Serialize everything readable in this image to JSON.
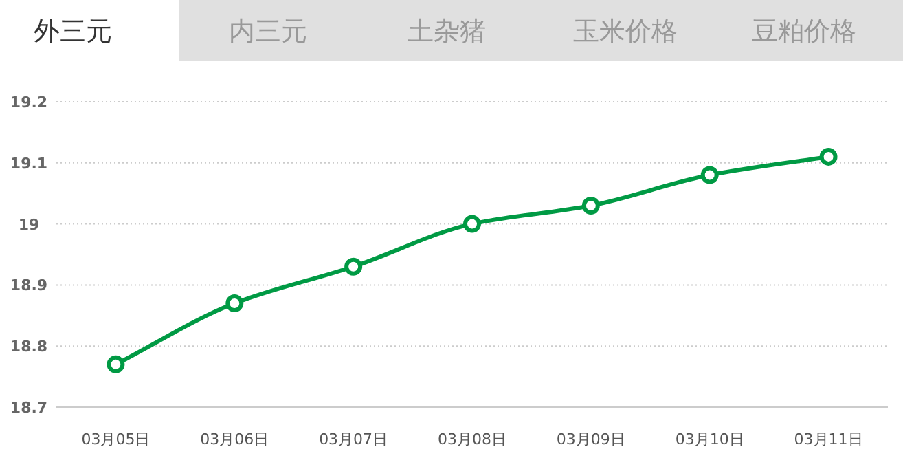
{
  "chart_data": {
    "type": "line",
    "title": "外三元",
    "annotations": [
      "内三元",
      "土杂猪",
      "玉米价格",
      "豆粕价格"
    ],
    "categories": [
      "03月05日",
      "03月06日",
      "03月07日",
      "03月08日",
      "03月09日",
      "03月10日",
      "03月11日"
    ],
    "series": [
      {
        "color": "#009a44",
        "values": [
          18.77,
          18.87,
          18.93,
          19.0,
          19.03,
          19.08,
          19.11
        ]
      }
    ],
    "ylim": [
      18.7,
      19.2
    ],
    "yticks": [
      18.7,
      18.8,
      18.9,
      19,
      19.1,
      19.2
    ],
    "grid": "y",
    "marker": "circle",
    "line_style": "solid"
  }
}
